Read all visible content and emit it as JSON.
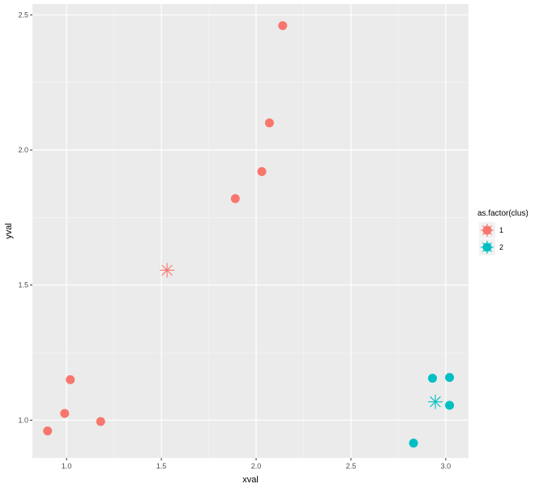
{
  "chart_data": {
    "type": "scatter",
    "title": "",
    "xlabel": "xval",
    "ylabel": "yval",
    "xlim": [
      0.82,
      3.12
    ],
    "ylim": [
      0.86,
      2.54
    ],
    "xticks": [
      1.0,
      1.5,
      2.0,
      2.5,
      3.0
    ],
    "xtick_labels": [
      "1.0",
      "1.5",
      "2.0",
      "2.5",
      "3.0"
    ],
    "yticks": [
      1.0,
      1.5,
      2.0,
      2.5
    ],
    "ytick_labels": [
      "1.0",
      "1.5",
      "2.0",
      "2.5"
    ],
    "grid": true,
    "legend": {
      "title": "as.factor(clus)",
      "position": "right",
      "entries": [
        {
          "label": "1",
          "color": "#F8766D"
        },
        {
          "label": "2",
          "color": "#00BFC4"
        }
      ]
    },
    "series": [
      {
        "name": "1",
        "color": "#F8766D",
        "points": [
          {
            "x": 0.9,
            "y": 0.96
          },
          {
            "x": 0.99,
            "y": 1.025
          },
          {
            "x": 1.02,
            "y": 1.15
          },
          {
            "x": 1.18,
            "y": 0.995
          },
          {
            "x": 1.89,
            "y": 1.82
          },
          {
            "x": 2.03,
            "y": 1.92
          },
          {
            "x": 2.07,
            "y": 2.1
          },
          {
            "x": 2.14,
            "y": 2.46
          }
        ],
        "center": {
          "x": 1.53,
          "y": 1.555
        }
      },
      {
        "name": "2",
        "color": "#00BFC4",
        "points": [
          {
            "x": 2.83,
            "y": 0.915
          },
          {
            "x": 2.93,
            "y": 1.155
          },
          {
            "x": 3.02,
            "y": 1.158
          },
          {
            "x": 3.02,
            "y": 1.055
          }
        ],
        "center": {
          "x": 2.945,
          "y": 1.068
        }
      }
    ]
  }
}
